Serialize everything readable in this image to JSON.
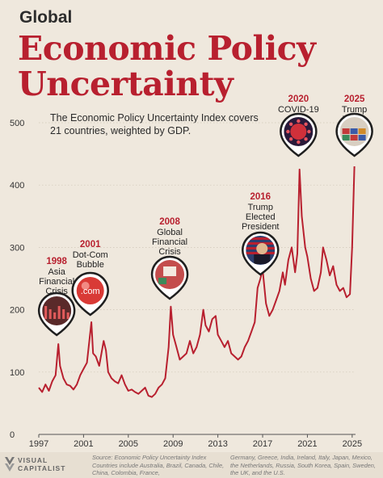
{
  "header": {
    "kicker": "Global",
    "title_line1": "Economic Policy",
    "title_line2": "Uncertainty",
    "subtitle": "The Economic Policy Uncertainty Index covers 21 countries, weighted by GDP."
  },
  "colors": {
    "accent": "#b8202f",
    "background": "#efe8dd",
    "text": "#2a2a2a"
  },
  "footer": {
    "logo_line1": "VISUAL",
    "logo_line2": "CAPITALIST",
    "source_left": "Source: Economic Policy Uncertainty Index Countries include Australia, Brazil, Canada, Chile, China, Colombia, France,",
    "source_right": "Germany, Greece, India, Ireland, Italy, Japan, Mexico, the Netherlands, Russia, South Korea, Spain, Sweden, the UK, and the U.S."
  },
  "annotations": [
    {
      "year": "1998",
      "lines": [
        "Asia",
        "Financial",
        "Crisis"
      ],
      "x": 1998.6,
      "icon": "stock-chart-icon"
    },
    {
      "year": "2001",
      "lines": [
        "Dot-Com",
        "Bubble"
      ],
      "x": 2001.6,
      "icon": "dotcom-bubble-icon",
      "icon_text": ".com"
    },
    {
      "year": "2008",
      "lines": [
        "Global",
        "Financial",
        "Crisis"
      ],
      "x": 2008.7,
      "icon": "market-crash-icon"
    },
    {
      "year": "2016",
      "lines": [
        "Trump",
        "Elected",
        "President"
      ],
      "x": 2016.8,
      "icon": "trump-portrait-icon"
    },
    {
      "year": "2020",
      "lines": [
        "COVID-19"
      ],
      "x": 2020.2,
      "icon": "virus-icon"
    },
    {
      "year": "2025",
      "lines": [
        "Trump",
        "Tariffs"
      ],
      "x": 2025.2,
      "icon": "shipping-containers-icon"
    }
  ],
  "chart_data": {
    "type": "line",
    "title": "Economic Policy Uncertainty",
    "xlabel": "",
    "ylabel": "",
    "xlim": [
      1997,
      2025.3
    ],
    "ylim": [
      0,
      500
    ],
    "yticks": [
      0,
      100,
      200,
      300,
      400,
      500
    ],
    "xticks": [
      1997,
      2001,
      2005,
      2009,
      2013,
      2017,
      2021,
      2025
    ],
    "grid": true,
    "series": [
      {
        "color": "#b8202f",
        "points": [
          [
            1997.0,
            75
          ],
          [
            1997.3,
            68
          ],
          [
            1997.6,
            80
          ],
          [
            1997.9,
            70
          ],
          [
            1998.2,
            85
          ],
          [
            1998.5,
            95
          ],
          [
            1998.75,
            145
          ],
          [
            1998.9,
            110
          ],
          [
            1999.2,
            90
          ],
          [
            1999.5,
            80
          ],
          [
            1999.8,
            78
          ],
          [
            2000.1,
            72
          ],
          [
            2000.4,
            80
          ],
          [
            2000.7,
            95
          ],
          [
            2001.0,
            105
          ],
          [
            2001.3,
            115
          ],
          [
            2001.7,
            180
          ],
          [
            2001.85,
            130
          ],
          [
            2002.1,
            125
          ],
          [
            2002.4,
            110
          ],
          [
            2002.8,
            150
          ],
          [
            2003.0,
            135
          ],
          [
            2003.2,
            100
          ],
          [
            2003.5,
            90
          ],
          [
            2003.8,
            85
          ],
          [
            2004.1,
            82
          ],
          [
            2004.4,
            95
          ],
          [
            2004.7,
            80
          ],
          [
            2005.0,
            70
          ],
          [
            2005.3,
            72
          ],
          [
            2005.6,
            68
          ],
          [
            2005.9,
            65
          ],
          [
            2006.2,
            70
          ],
          [
            2006.5,
            75
          ],
          [
            2006.8,
            62
          ],
          [
            2007.1,
            60
          ],
          [
            2007.4,
            65
          ],
          [
            2007.7,
            75
          ],
          [
            2008.0,
            80
          ],
          [
            2008.3,
            90
          ],
          [
            2008.6,
            140
          ],
          [
            2008.8,
            205
          ],
          [
            2009.0,
            160
          ],
          [
            2009.3,
            140
          ],
          [
            2009.6,
            120
          ],
          [
            2009.9,
            125
          ],
          [
            2010.2,
            130
          ],
          [
            2010.5,
            150
          ],
          [
            2010.8,
            130
          ],
          [
            2011.1,
            140
          ],
          [
            2011.4,
            160
          ],
          [
            2011.7,
            200
          ],
          [
            2011.9,
            175
          ],
          [
            2012.2,
            165
          ],
          [
            2012.5,
            185
          ],
          [
            2012.8,
            190
          ],
          [
            2013.0,
            160
          ],
          [
            2013.3,
            150
          ],
          [
            2013.6,
            140
          ],
          [
            2013.9,
            150
          ],
          [
            2014.2,
            130
          ],
          [
            2014.5,
            125
          ],
          [
            2014.8,
            120
          ],
          [
            2015.1,
            125
          ],
          [
            2015.4,
            140
          ],
          [
            2015.7,
            150
          ],
          [
            2016.0,
            165
          ],
          [
            2016.3,
            180
          ],
          [
            2016.55,
            235
          ],
          [
            2016.8,
            250
          ],
          [
            2017.0,
            265
          ],
          [
            2017.3,
            210
          ],
          [
            2017.6,
            190
          ],
          [
            2017.9,
            200
          ],
          [
            2018.2,
            215
          ],
          [
            2018.5,
            230
          ],
          [
            2018.8,
            260
          ],
          [
            2019.0,
            240
          ],
          [
            2019.3,
            280
          ],
          [
            2019.6,
            300
          ],
          [
            2019.9,
            260
          ],
          [
            2020.1,
            290
          ],
          [
            2020.3,
            425
          ],
          [
            2020.5,
            350
          ],
          [
            2020.8,
            300
          ],
          [
            2021.0,
            285
          ],
          [
            2021.3,
            250
          ],
          [
            2021.6,
            230
          ],
          [
            2021.9,
            235
          ],
          [
            2022.2,
            260
          ],
          [
            2022.4,
            300
          ],
          [
            2022.7,
            280
          ],
          [
            2023.0,
            255
          ],
          [
            2023.3,
            270
          ],
          [
            2023.6,
            240
          ],
          [
            2023.9,
            230
          ],
          [
            2024.2,
            235
          ],
          [
            2024.5,
            220
          ],
          [
            2024.8,
            225
          ],
          [
            2025.0,
            300
          ],
          [
            2025.2,
            430
          ]
        ]
      }
    ]
  }
}
